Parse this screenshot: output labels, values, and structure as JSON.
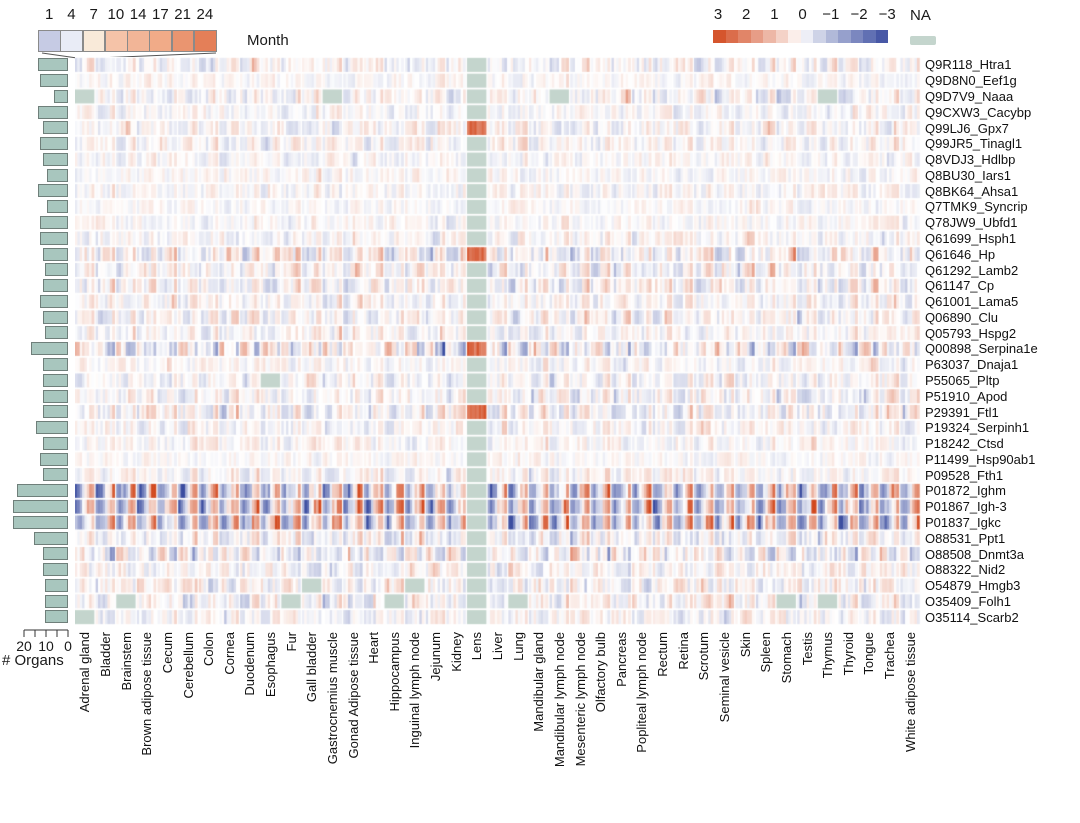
{
  "legend_month": {
    "title": "Month",
    "ticks": [
      "1",
      "4",
      "7",
      "10",
      "14",
      "17",
      "21",
      "24"
    ],
    "colors": [
      "#c6cbe4",
      "#e9ecf6",
      "#f9ead9",
      "#f5c3a8",
      "#f2b597",
      "#f1ab88",
      "#ea9570",
      "#e47f58"
    ]
  },
  "legend_z": {
    "ticks": [
      "3",
      "2",
      "1",
      "0",
      "−1",
      "−2",
      "−3"
    ],
    "na_label": "NA",
    "max": 3,
    "min": -3,
    "red_hex": "#d2491f",
    "blue_hex": "#3b4da0",
    "white_hex": "#ffffff",
    "na_hex": "#c4d5cd"
  },
  "bar_axis": {
    "label": "# Organs",
    "ticks": [
      "20",
      "10",
      "0"
    ],
    "max": 20
  },
  "chart_data": {
    "type": "heatmap",
    "title": "",
    "xlabel": "",
    "ylabel": "",
    "months": [
      1,
      4,
      7,
      10,
      14,
      17,
      21,
      24
    ],
    "organs": [
      "Adrenal gland",
      "Bladder",
      "Brainstem",
      "Brown adipose tissue",
      "Cecum",
      "Cerebellum",
      "Colon",
      "Cornea",
      "Duodenum",
      "Esophagus",
      "Fur",
      "Gall bladder",
      "Gastrocnemius muscle",
      "Gonad Adipose tissue",
      "Heart",
      "Hippocampus",
      "Inguinal lymph node",
      "Jejunum",
      "Kidney",
      "Lens",
      "Liver",
      "Lung",
      "Mandibular gland",
      "Mandibular lymph node",
      "Mesenteric lymph node",
      "Olfactory bulb",
      "Pancreas",
      "Popliteal lymph node",
      "Rectum",
      "Retina",
      "Scrotum",
      "Seminal vesicle",
      "Skin",
      "Spleen",
      "Stomach",
      "Testis",
      "Thymus",
      "Thyroid",
      "Tongue",
      "Trachea",
      "White adipose tissue"
    ],
    "lens_organ_index": 19,
    "lens_red_rows": [
      4,
      12,
      18,
      22
    ],
    "colorscale": {
      "min": -3,
      "max": 3,
      "red": "#d2491f",
      "white": "#ffffff",
      "blue": "#3b4da0",
      "na": "#c4d5cd"
    },
    "rows": [
      {
        "label": "Q9R118_Htra1",
        "organ_count": 13,
        "trend": 0.25,
        "amp": 0.75,
        "spike": 0.07,
        "na": 0
      },
      {
        "label": "Q9D8N0_Eef1g",
        "organ_count": 12,
        "trend": 0.05,
        "amp": 0.45,
        "spike": 0.03,
        "na": 0
      },
      {
        "label": "Q9D7V9_Naaa",
        "organ_count": 6,
        "trend": 0.2,
        "amp": 0.8,
        "spike": 0.1,
        "na": 0.05
      },
      {
        "label": "Q9CXW3_Cacybp",
        "organ_count": 13,
        "trend": 0.1,
        "amp": 0.6,
        "spike": 0.05,
        "na": 0
      },
      {
        "label": "Q99LJ6_Gpx7",
        "organ_count": 11,
        "trend": 0.15,
        "amp": 0.7,
        "spike": 0.07,
        "na": 0
      },
      {
        "label": "Q99JR5_Tinagl1",
        "organ_count": 12,
        "trend": 0.15,
        "amp": 0.65,
        "spike": 0.05,
        "na": 0
      },
      {
        "label": "Q8VDJ3_Hdlbp",
        "organ_count": 11,
        "trend": 0.05,
        "amp": 0.55,
        "spike": 0.04,
        "na": 0
      },
      {
        "label": "Q8BU30_Iars1",
        "organ_count": 9,
        "trend": 0.05,
        "amp": 0.5,
        "spike": 0.04,
        "na": 0
      },
      {
        "label": "Q8BK64_Ahsa1",
        "organ_count": 13,
        "trend": 0.1,
        "amp": 0.6,
        "spike": 0.05,
        "na": 0
      },
      {
        "label": "Q7TMK9_Syncrip",
        "organ_count": 9,
        "trend": 0.0,
        "amp": 0.45,
        "spike": 0.03,
        "na": 0
      },
      {
        "label": "Q78JW9_Ubfd1",
        "organ_count": 12,
        "trend": 0.05,
        "amp": 0.5,
        "spike": 0.04,
        "na": 0
      },
      {
        "label": "Q61699_Hsph1",
        "organ_count": 12,
        "trend": 0.1,
        "amp": 0.6,
        "spike": 0.05,
        "na": 0
      },
      {
        "label": "Q61646_Hp",
        "organ_count": 11,
        "trend": 0.35,
        "amp": 0.95,
        "spike": 0.12,
        "na": 0
      },
      {
        "label": "Q61292_Lamb2",
        "organ_count": 10,
        "trend": 0.25,
        "amp": 0.8,
        "spike": 0.07,
        "na": 0
      },
      {
        "label": "Q61147_Cp",
        "organ_count": 11,
        "trend": 0.3,
        "amp": 0.85,
        "spike": 0.08,
        "na": 0
      },
      {
        "label": "Q61001_Lama5",
        "organ_count": 12,
        "trend": 0.2,
        "amp": 0.7,
        "spike": 0.06,
        "na": 0
      },
      {
        "label": "Q06890_Clu",
        "organ_count": 11,
        "trend": 0.25,
        "amp": 0.75,
        "spike": 0.06,
        "na": 0
      },
      {
        "label": "Q05793_Hspg2",
        "organ_count": 10,
        "trend": 0.15,
        "amp": 0.65,
        "spike": 0.05,
        "na": 0
      },
      {
        "label": "Q00898_Serpina1e",
        "organ_count": 16,
        "trend": -0.55,
        "amp": 1.05,
        "spike": 0.1,
        "na": 0
      },
      {
        "label": "P63037_Dnaja1",
        "organ_count": 11,
        "trend": 0.05,
        "amp": 0.6,
        "spike": 0.05,
        "na": 0
      },
      {
        "label": "P55065_Pltp",
        "organ_count": 11,
        "trend": 0.2,
        "amp": 0.7,
        "spike": 0.06,
        "na": 0.03
      },
      {
        "label": "P51910_Apod",
        "organ_count": 11,
        "trend": 0.2,
        "amp": 0.8,
        "spike": 0.07,
        "na": 0.03
      },
      {
        "label": "P29391_Ftl1",
        "organ_count": 11,
        "trend": 0.25,
        "amp": 0.9,
        "spike": 0.1,
        "na": 0
      },
      {
        "label": "P19324_Serpinh1",
        "organ_count": 14,
        "trend": 0.1,
        "amp": 0.7,
        "spike": 0.06,
        "na": 0
      },
      {
        "label": "P18242_Ctsd",
        "organ_count": 11,
        "trend": 0.1,
        "amp": 0.6,
        "spike": 0.05,
        "na": 0
      },
      {
        "label": "P11499_Hsp90ab1",
        "organ_count": 12,
        "trend": 0.0,
        "amp": 0.45,
        "spike": 0.03,
        "na": 0
      },
      {
        "label": "P09528_Fth1",
        "organ_count": 11,
        "trend": 0.15,
        "amp": 0.6,
        "spike": 0.05,
        "na": 0
      },
      {
        "label": "P01872_Ighm",
        "organ_count": 22,
        "trend": 0.8,
        "amp": 1.1,
        "spike": 0.14,
        "na": 0,
        "blue_start": true
      },
      {
        "label": "P01867_Igh-3",
        "organ_count": 24,
        "trend": 0.9,
        "amp": 1.2,
        "spike": 0.16,
        "na": 0,
        "blue_start": true
      },
      {
        "label": "P01837_Igkc",
        "organ_count": 24,
        "trend": 0.85,
        "amp": 1.15,
        "spike": 0.15,
        "na": 0,
        "blue_start": true
      },
      {
        "label": "O88531_Ppt1",
        "organ_count": 15,
        "trend": 0.3,
        "amp": 0.85,
        "spike": 0.09,
        "na": 0
      },
      {
        "label": "O88508_Dnmt3a",
        "organ_count": 11,
        "trend": -0.35,
        "amp": 0.95,
        "spike": 0.11,
        "na": 0
      },
      {
        "label": "O88322_Nid2",
        "organ_count": 11,
        "trend": -0.15,
        "amp": 0.75,
        "spike": 0.07,
        "na": 0
      },
      {
        "label": "O54879_Hmgb3",
        "organ_count": 10,
        "trend": -0.1,
        "amp": 0.85,
        "spike": 0.09,
        "na": 0.03
      },
      {
        "label": "O35409_Folh1",
        "organ_count": 10,
        "trend": 0.15,
        "amp": 0.85,
        "spike": 0.09,
        "na": 0.28
      },
      {
        "label": "O35114_Scarb2",
        "organ_count": 10,
        "trend": 0.1,
        "amp": 0.75,
        "spike": 0.07,
        "na": 0.05
      }
    ]
  }
}
